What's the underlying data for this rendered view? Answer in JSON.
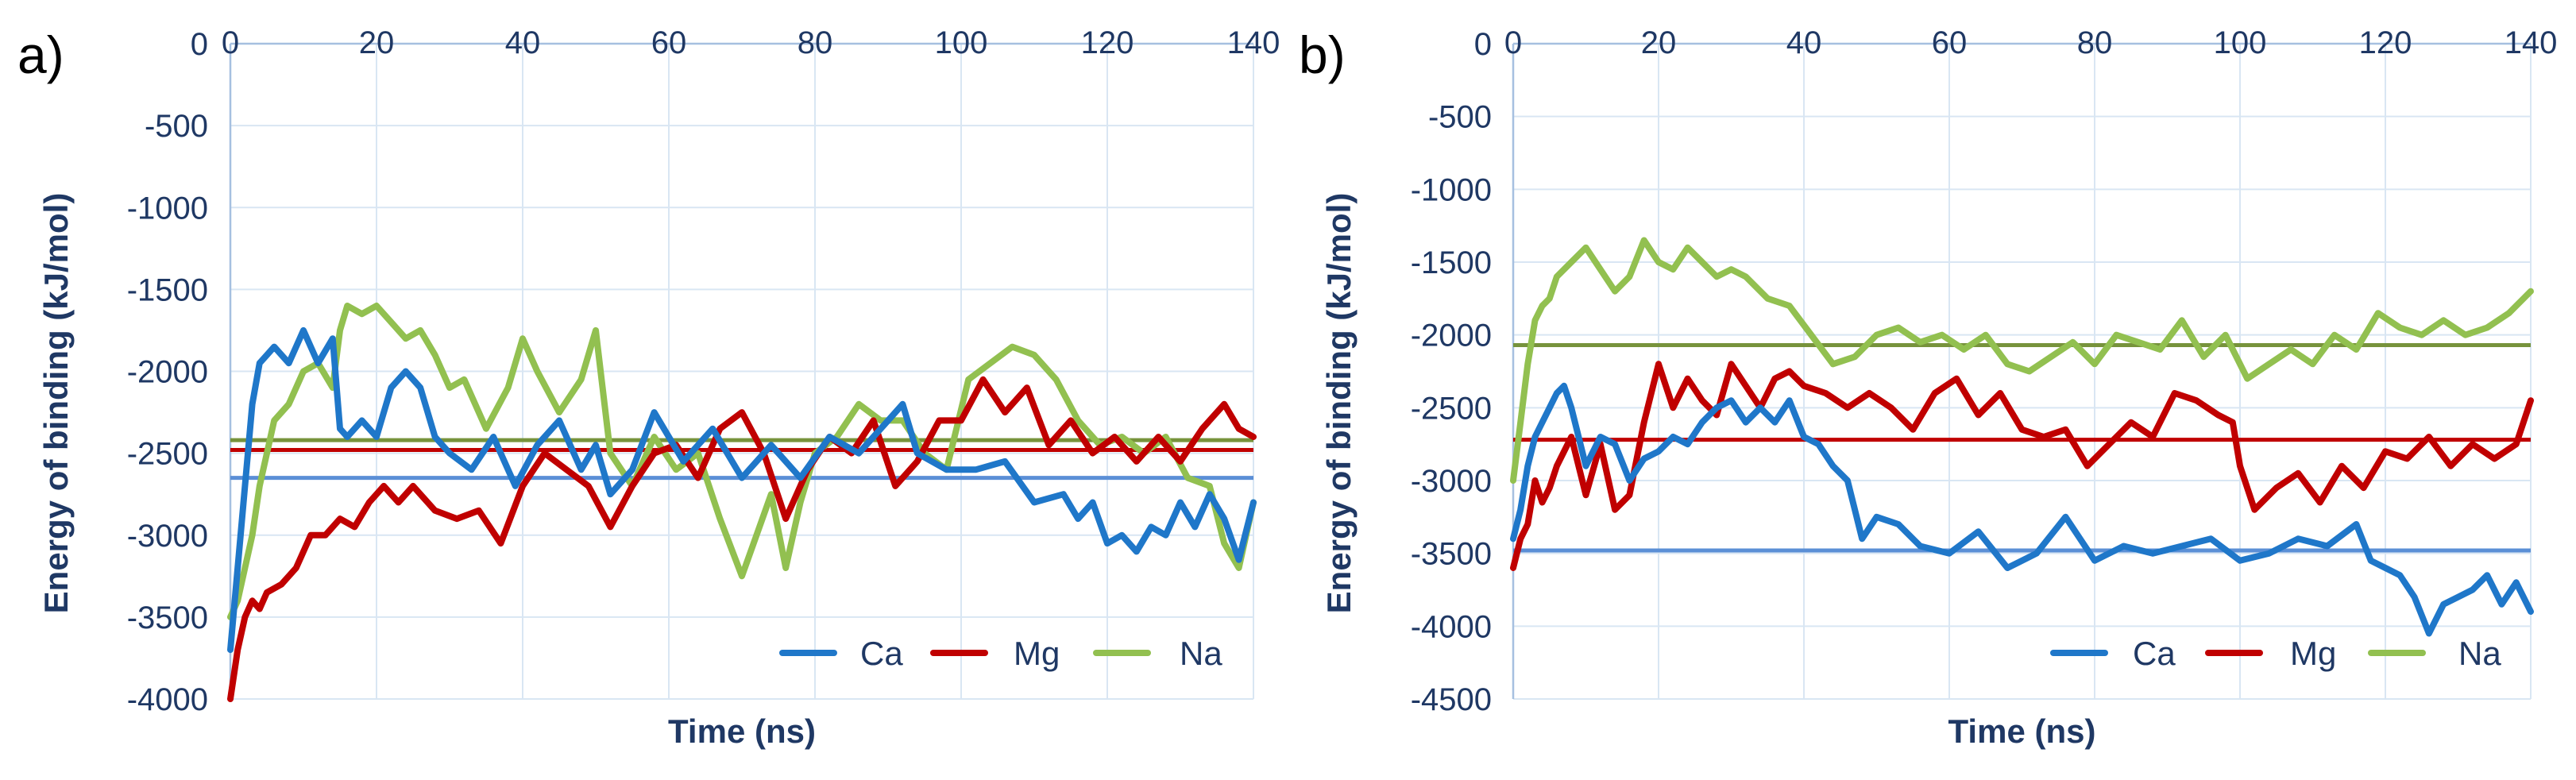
{
  "chart_data": [
    {
      "type": "line",
      "panel_label": "a)",
      "xlabel": "Time (ns)",
      "ylabel": "Energy of binding (kJ/mol)",
      "xlim": [
        0,
        140
      ],
      "ylim": [
        -4000,
        0
      ],
      "x_ticks": [
        0,
        20,
        40,
        60,
        80,
        100,
        120,
        140
      ],
      "y_ticks": [
        0,
        -500,
        -1000,
        -1500,
        -2000,
        -2500,
        -3000,
        -3500,
        -4000
      ],
      "grid": true,
      "legend_position": "bottom-right",
      "series": [
        {
          "name": "Ca",
          "color": "#1f77c9",
          "x": [
            0,
            1,
            2,
            3,
            4,
            5,
            6,
            8,
            10,
            12,
            14,
            15,
            16,
            18,
            20,
            22,
            24,
            26,
            28,
            30,
            33,
            36,
            39,
            42,
            45,
            48,
            50,
            52,
            55,
            58,
            62,
            66,
            70,
            74,
            78,
            82,
            86,
            90,
            92,
            94,
            98,
            102,
            106,
            110,
            114,
            116,
            118,
            120,
            122,
            124,
            126,
            128,
            130,
            132,
            134,
            136,
            138,
            140
          ],
          "y": [
            -3700,
            -3200,
            -2700,
            -2200,
            -1950,
            -1900,
            -1850,
            -1950,
            -1750,
            -1950,
            -1800,
            -2350,
            -2400,
            -2300,
            -2400,
            -2100,
            -2000,
            -2100,
            -2400,
            -2500,
            -2600,
            -2400,
            -2700,
            -2450,
            -2300,
            -2600,
            -2450,
            -2750,
            -2600,
            -2250,
            -2550,
            -2350,
            -2650,
            -2450,
            -2650,
            -2400,
            -2500,
            -2300,
            -2200,
            -2500,
            -2600,
            -2600,
            -2550,
            -2800,
            -2750,
            -2900,
            -2800,
            -3050,
            -3000,
            -3100,
            -2950,
            -3000,
            -2800,
            -2950,
            -2750,
            -2900,
            -3150,
            -2800
          ]
        },
        {
          "name": "Mg",
          "color": "#c00000",
          "x": [
            0,
            1,
            2,
            3,
            4,
            5,
            7,
            9,
            11,
            13,
            15,
            17,
            19,
            21,
            23,
            25,
            28,
            31,
            34,
            37,
            40,
            43,
            46,
            49,
            52,
            55,
            58,
            61,
            64,
            67,
            70,
            73,
            76,
            79,
            82,
            85,
            88,
            91,
            94,
            97,
            100,
            103,
            106,
            109,
            112,
            115,
            118,
            121,
            124,
            127,
            130,
            133,
            136,
            138,
            140
          ],
          "y": [
            -4000,
            -3700,
            -3500,
            -3400,
            -3450,
            -3350,
            -3300,
            -3200,
            -3000,
            -3000,
            -2900,
            -2950,
            -2800,
            -2700,
            -2800,
            -2700,
            -2850,
            -2900,
            -2850,
            -3050,
            -2700,
            -2500,
            -2600,
            -2700,
            -2950,
            -2700,
            -2500,
            -2450,
            -2650,
            -2350,
            -2250,
            -2500,
            -2900,
            -2600,
            -2400,
            -2500,
            -2300,
            -2700,
            -2550,
            -2300,
            -2300,
            -2050,
            -2250,
            -2100,
            -2450,
            -2300,
            -2500,
            -2400,
            -2550,
            -2400,
            -2550,
            -2350,
            -2200,
            -2350,
            -2400
          ]
        },
        {
          "name": "Na",
          "color": "#92c050",
          "x": [
            0,
            1,
            2,
            3,
            4,
            5,
            6,
            8,
            10,
            12,
            14,
            15,
            16,
            18,
            20,
            22,
            24,
            26,
            28,
            30,
            32,
            35,
            38,
            40,
            42,
            45,
            48,
            50,
            52,
            55,
            58,
            61,
            64,
            67,
            70,
            72,
            74,
            76,
            78,
            80,
            83,
            86,
            89,
            92,
            95,
            98,
            101,
            104,
            107,
            110,
            113,
            116,
            119,
            122,
            125,
            128,
            131,
            134,
            136,
            138,
            140
          ],
          "y": [
            -3500,
            -3400,
            -3200,
            -3000,
            -2700,
            -2500,
            -2300,
            -2200,
            -2000,
            -1950,
            -2100,
            -1750,
            -1600,
            -1650,
            -1600,
            -1700,
            -1800,
            -1750,
            -1900,
            -2100,
            -2050,
            -2350,
            -2100,
            -1800,
            -2000,
            -2250,
            -2050,
            -1750,
            -2500,
            -2700,
            -2400,
            -2600,
            -2500,
            -2900,
            -3250,
            -3000,
            -2750,
            -3200,
            -2800,
            -2500,
            -2400,
            -2200,
            -2300,
            -2300,
            -2500,
            -2600,
            -2050,
            -1950,
            -1850,
            -1900,
            -2050,
            -2300,
            -2450,
            -2400,
            -2500,
            -2400,
            -2650,
            -2700,
            -3050,
            -3200,
            -2800
          ]
        }
      ],
      "averages": [
        {
          "series": "Ca",
          "value": -2650,
          "color": "#5b8fd6"
        },
        {
          "series": "Mg",
          "value": -2480,
          "color": "#c00000"
        },
        {
          "series": "Na",
          "value": -2420,
          "color": "#77933c"
        }
      ]
    },
    {
      "type": "line",
      "panel_label": "b)",
      "xlabel": "Time (ns)",
      "ylabel": "Energy of binding (kJ/mol)",
      "xlim": [
        0,
        140
      ],
      "ylim": [
        -4500,
        0
      ],
      "x_ticks": [
        0,
        20,
        40,
        60,
        80,
        100,
        120,
        140
      ],
      "y_ticks": [
        0,
        -500,
        -1000,
        -1500,
        -2000,
        -2500,
        -3000,
        -3500,
        -4000,
        -4500
      ],
      "grid": true,
      "legend_position": "bottom-right",
      "series": [
        {
          "name": "Ca",
          "color": "#1f77c9",
          "x": [
            0,
            1,
            2,
            3,
            4,
            5,
            6,
            7,
            8,
            10,
            12,
            14,
            16,
            18,
            20,
            22,
            24,
            26,
            28,
            30,
            32,
            34,
            36,
            38,
            40,
            42,
            44,
            46,
            47,
            48,
            50,
            53,
            56,
            60,
            64,
            68,
            72,
            76,
            80,
            84,
            88,
            92,
            96,
            100,
            104,
            108,
            112,
            116,
            118,
            120,
            122,
            124,
            126,
            128,
            130,
            132,
            134,
            136,
            138,
            140
          ],
          "y": [
            -3400,
            -3200,
            -2900,
            -2700,
            -2600,
            -2500,
            -2400,
            -2350,
            -2500,
            -2900,
            -2700,
            -2750,
            -3000,
            -2850,
            -2800,
            -2700,
            -2750,
            -2600,
            -2500,
            -2450,
            -2600,
            -2500,
            -2600,
            -2450,
            -2700,
            -2750,
            -2900,
            -3000,
            -3200,
            -3400,
            -3250,
            -3300,
            -3450,
            -3500,
            -3350,
            -3600,
            -3500,
            -3250,
            -3550,
            -3450,
            -3500,
            -3450,
            -3400,
            -3550,
            -3500,
            -3400,
            -3450,
            -3300,
            -3550,
            -3600,
            -3650,
            -3800,
            -4050,
            -3850,
            -3800,
            -3750,
            -3650,
            -3850,
            -3700,
            -3900
          ]
        },
        {
          "name": "Mg",
          "color": "#c00000",
          "x": [
            0,
            1,
            2,
            3,
            4,
            5,
            6,
            8,
            10,
            12,
            14,
            16,
            18,
            20,
            22,
            24,
            26,
            28,
            30,
            32,
            34,
            36,
            38,
            40,
            43,
            46,
            49,
            52,
            55,
            58,
            61,
            64,
            67,
            70,
            73,
            76,
            79,
            82,
            85,
            88,
            91,
            94,
            97,
            99,
            100,
            102,
            105,
            108,
            111,
            114,
            117,
            120,
            123,
            126,
            129,
            132,
            135,
            138,
            140
          ],
          "y": [
            -3600,
            -3400,
            -3300,
            -3000,
            -3150,
            -3050,
            -2900,
            -2700,
            -3100,
            -2750,
            -3200,
            -3100,
            -2600,
            -2200,
            -2500,
            -2300,
            -2450,
            -2550,
            -2200,
            -2350,
            -2500,
            -2300,
            -2250,
            -2350,
            -2400,
            -2500,
            -2400,
            -2500,
            -2650,
            -2400,
            -2300,
            -2550,
            -2400,
            -2650,
            -2700,
            -2650,
            -2900,
            -2750,
            -2600,
            -2700,
            -2400,
            -2450,
            -2550,
            -2600,
            -2900,
            -3200,
            -3050,
            -2950,
            -3150,
            -2900,
            -3050,
            -2800,
            -2850,
            -2700,
            -2900,
            -2750,
            -2850,
            -2750,
            -2450
          ]
        },
        {
          "name": "Na",
          "color": "#92c050",
          "x": [
            0,
            1,
            2,
            3,
            4,
            5,
            6,
            8,
            10,
            12,
            14,
            16,
            18,
            20,
            22,
            24,
            26,
            28,
            30,
            32,
            35,
            38,
            41,
            44,
            47,
            50,
            53,
            56,
            59,
            62,
            65,
            68,
            71,
            74,
            77,
            80,
            83,
            86,
            89,
            92,
            95,
            98,
            101,
            104,
            107,
            110,
            113,
            116,
            119,
            122,
            125,
            128,
            131,
            134,
            137,
            140
          ],
          "y": [
            -3000,
            -2600,
            -2200,
            -1900,
            -1800,
            -1750,
            -1600,
            -1500,
            -1400,
            -1550,
            -1700,
            -1600,
            -1350,
            -1500,
            -1550,
            -1400,
            -1500,
            -1600,
            -1550,
            -1600,
            -1750,
            -1800,
            -2000,
            -2200,
            -2150,
            -2000,
            -1950,
            -2050,
            -2000,
            -2100,
            -2000,
            -2200,
            -2250,
            -2150,
            -2050,
            -2200,
            -2000,
            -2050,
            -2100,
            -1900,
            -2150,
            -2000,
            -2300,
            -2200,
            -2100,
            -2200,
            -2000,
            -2100,
            -1850,
            -1950,
            -2000,
            -1900,
            -2000,
            -1950,
            -1850,
            -1700
          ]
        }
      ],
      "averages": [
        {
          "series": "Ca",
          "value": -3480,
          "color": "#5b8fd6"
        },
        {
          "series": "Mg",
          "value": -2720,
          "color": "#c00000"
        },
        {
          "series": "Na",
          "value": -2070,
          "color": "#77933c"
        }
      ]
    }
  ]
}
